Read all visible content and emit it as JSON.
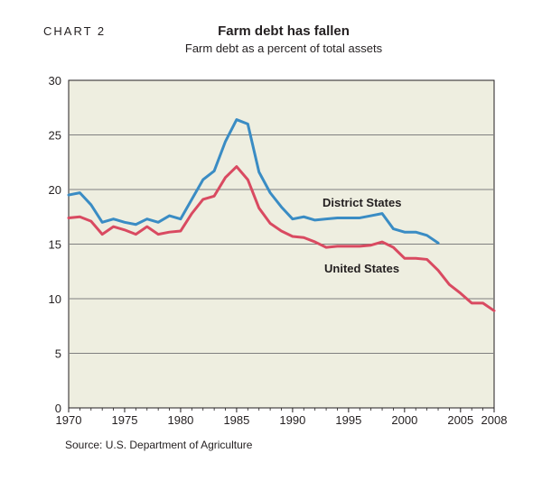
{
  "header": {
    "chart_label": "CHART 2",
    "title": "Farm debt has fallen",
    "subtitle": "Farm debt as a percent of total assets"
  },
  "footer": {
    "source": "Source: U.S. Department of Agriculture"
  },
  "colors": {
    "plot_background": "#eeeee0",
    "gridline": "#7f7f7f",
    "district_states": "#3a8cc4",
    "united_states": "#d94a61"
  },
  "chart_data": {
    "type": "line",
    "title": "Farm debt has fallen",
    "subtitle": "Farm debt as a percent of total assets",
    "xlim": [
      1970,
      2008
    ],
    "ylim": [
      0,
      30
    ],
    "x_ticks": [
      1970,
      1975,
      1980,
      1985,
      1990,
      1995,
      2000,
      2005,
      2008
    ],
    "x_tick_labels": [
      "1970",
      "1975",
      "1980",
      "1985",
      "1990",
      "1995",
      "2000",
      "2005",
      "2008"
    ],
    "y_ticks": [
      0,
      5,
      10,
      15,
      20,
      25,
      30
    ],
    "y_tick_labels": [
      "0",
      "5",
      "10",
      "15",
      "20",
      "25",
      "30"
    ],
    "grid": true,
    "series": [
      {
        "name": "District States",
        "color": "#3a8cc4",
        "x": [
          1970,
          1971,
          1972,
          1973,
          1974,
          1975,
          1976,
          1977,
          1978,
          1979,
          1980,
          1981,
          1982,
          1983,
          1984,
          1985,
          1986,
          1987,
          1988,
          1989,
          1990,
          1991,
          1992,
          1993,
          1994,
          1995,
          1996,
          1997,
          1998,
          1999,
          2000,
          2001,
          2002,
          2003
        ],
        "y": [
          19.5,
          19.7,
          18.6,
          17.0,
          17.3,
          17.0,
          16.8,
          17.3,
          17.0,
          17.6,
          17.3,
          19.1,
          20.9,
          21.7,
          24.4,
          26.4,
          26.0,
          21.6,
          19.7,
          18.4,
          17.3,
          17.5,
          17.2,
          17.3,
          17.4,
          17.4,
          17.4,
          17.6,
          17.8,
          16.4,
          16.1,
          16.1,
          15.8,
          15.1
        ]
      },
      {
        "name": "United States",
        "color": "#d94a61",
        "x": [
          1970,
          1971,
          1972,
          1973,
          1974,
          1975,
          1976,
          1977,
          1978,
          1979,
          1980,
          1981,
          1982,
          1983,
          1984,
          1985,
          1986,
          1987,
          1988,
          1989,
          1990,
          1991,
          1992,
          1993,
          1994,
          1995,
          1996,
          1997,
          1998,
          1999,
          2000,
          2001,
          2002,
          2003,
          2004,
          2005,
          2006,
          2007,
          2008
        ],
        "y": [
          17.4,
          17.5,
          17.1,
          15.9,
          16.6,
          16.3,
          15.9,
          16.6,
          15.9,
          16.1,
          16.2,
          17.8,
          19.1,
          19.4,
          21.1,
          22.1,
          20.9,
          18.3,
          16.9,
          16.2,
          15.7,
          15.6,
          15.2,
          14.7,
          14.8,
          14.8,
          14.8,
          14.9,
          15.2,
          14.7,
          13.7,
          13.7,
          13.6,
          12.6,
          11.3,
          10.5,
          9.6,
          9.6,
          8.9
        ]
      }
    ]
  }
}
